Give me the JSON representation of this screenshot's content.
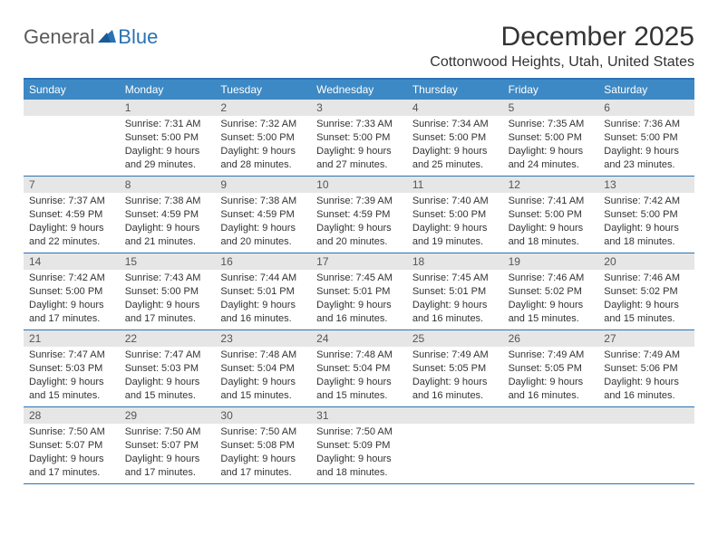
{
  "brand": {
    "general": "General",
    "blue": "Blue"
  },
  "title": "December 2025",
  "location": "Cottonwood Heights, Utah, United States",
  "colors": {
    "header_bg": "#3d89c5",
    "border": "#2a72b5",
    "daynum_bg": "#e6e6e6",
    "text": "#333333",
    "logo_gray": "#5a5a5a",
    "logo_blue": "#2a72b5",
    "page_bg": "#ffffff"
  },
  "calendar": {
    "day_headers_fontsize": 12,
    "cell_fontsize": 11,
    "title_fontsize": 30,
    "location_fontsize": 16,
    "columns": [
      "Sunday",
      "Monday",
      "Tuesday",
      "Wednesday",
      "Thursday",
      "Friday",
      "Saturday"
    ],
    "rows": [
      [
        {
          "num": "",
          "sunrise": "",
          "sunset": "",
          "daylight": ""
        },
        {
          "num": "1",
          "sunrise": "7:31 AM",
          "sunset": "5:00 PM",
          "daylight": "9 hours and 29 minutes."
        },
        {
          "num": "2",
          "sunrise": "7:32 AM",
          "sunset": "5:00 PM",
          "daylight": "9 hours and 28 minutes."
        },
        {
          "num": "3",
          "sunrise": "7:33 AM",
          "sunset": "5:00 PM",
          "daylight": "9 hours and 27 minutes."
        },
        {
          "num": "4",
          "sunrise": "7:34 AM",
          "sunset": "5:00 PM",
          "daylight": "9 hours and 25 minutes."
        },
        {
          "num": "5",
          "sunrise": "7:35 AM",
          "sunset": "5:00 PM",
          "daylight": "9 hours and 24 minutes."
        },
        {
          "num": "6",
          "sunrise": "7:36 AM",
          "sunset": "5:00 PM",
          "daylight": "9 hours and 23 minutes."
        }
      ],
      [
        {
          "num": "7",
          "sunrise": "7:37 AM",
          "sunset": "4:59 PM",
          "daylight": "9 hours and 22 minutes."
        },
        {
          "num": "8",
          "sunrise": "7:38 AM",
          "sunset": "4:59 PM",
          "daylight": "9 hours and 21 minutes."
        },
        {
          "num": "9",
          "sunrise": "7:38 AM",
          "sunset": "4:59 PM",
          "daylight": "9 hours and 20 minutes."
        },
        {
          "num": "10",
          "sunrise": "7:39 AM",
          "sunset": "4:59 PM",
          "daylight": "9 hours and 20 minutes."
        },
        {
          "num": "11",
          "sunrise": "7:40 AM",
          "sunset": "5:00 PM",
          "daylight": "9 hours and 19 minutes."
        },
        {
          "num": "12",
          "sunrise": "7:41 AM",
          "sunset": "5:00 PM",
          "daylight": "9 hours and 18 minutes."
        },
        {
          "num": "13",
          "sunrise": "7:42 AM",
          "sunset": "5:00 PM",
          "daylight": "9 hours and 18 minutes."
        }
      ],
      [
        {
          "num": "14",
          "sunrise": "7:42 AM",
          "sunset": "5:00 PM",
          "daylight": "9 hours and 17 minutes."
        },
        {
          "num": "15",
          "sunrise": "7:43 AM",
          "sunset": "5:00 PM",
          "daylight": "9 hours and 17 minutes."
        },
        {
          "num": "16",
          "sunrise": "7:44 AM",
          "sunset": "5:01 PM",
          "daylight": "9 hours and 16 minutes."
        },
        {
          "num": "17",
          "sunrise": "7:45 AM",
          "sunset": "5:01 PM",
          "daylight": "9 hours and 16 minutes."
        },
        {
          "num": "18",
          "sunrise": "7:45 AM",
          "sunset": "5:01 PM",
          "daylight": "9 hours and 16 minutes."
        },
        {
          "num": "19",
          "sunrise": "7:46 AM",
          "sunset": "5:02 PM",
          "daylight": "9 hours and 15 minutes."
        },
        {
          "num": "20",
          "sunrise": "7:46 AM",
          "sunset": "5:02 PM",
          "daylight": "9 hours and 15 minutes."
        }
      ],
      [
        {
          "num": "21",
          "sunrise": "7:47 AM",
          "sunset": "5:03 PM",
          "daylight": "9 hours and 15 minutes."
        },
        {
          "num": "22",
          "sunrise": "7:47 AM",
          "sunset": "5:03 PM",
          "daylight": "9 hours and 15 minutes."
        },
        {
          "num": "23",
          "sunrise": "7:48 AM",
          "sunset": "5:04 PM",
          "daylight": "9 hours and 15 minutes."
        },
        {
          "num": "24",
          "sunrise": "7:48 AM",
          "sunset": "5:04 PM",
          "daylight": "9 hours and 15 minutes."
        },
        {
          "num": "25",
          "sunrise": "7:49 AM",
          "sunset": "5:05 PM",
          "daylight": "9 hours and 16 minutes."
        },
        {
          "num": "26",
          "sunrise": "7:49 AM",
          "sunset": "5:05 PM",
          "daylight": "9 hours and 16 minutes."
        },
        {
          "num": "27",
          "sunrise": "7:49 AM",
          "sunset": "5:06 PM",
          "daylight": "9 hours and 16 minutes."
        }
      ],
      [
        {
          "num": "28",
          "sunrise": "7:50 AM",
          "sunset": "5:07 PM",
          "daylight": "9 hours and 17 minutes."
        },
        {
          "num": "29",
          "sunrise": "7:50 AM",
          "sunset": "5:07 PM",
          "daylight": "9 hours and 17 minutes."
        },
        {
          "num": "30",
          "sunrise": "7:50 AM",
          "sunset": "5:08 PM",
          "daylight": "9 hours and 17 minutes."
        },
        {
          "num": "31",
          "sunrise": "7:50 AM",
          "sunset": "5:09 PM",
          "daylight": "9 hours and 18 minutes."
        },
        {
          "num": "",
          "sunrise": "",
          "sunset": "",
          "daylight": ""
        },
        {
          "num": "",
          "sunrise": "",
          "sunset": "",
          "daylight": ""
        },
        {
          "num": "",
          "sunrise": "",
          "sunset": "",
          "daylight": ""
        }
      ]
    ],
    "labels": {
      "sunrise": "Sunrise:",
      "sunset": "Sunset:",
      "daylight": "Daylight:"
    }
  }
}
